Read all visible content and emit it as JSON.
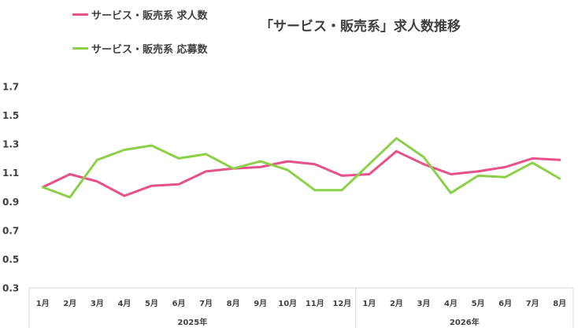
{
  "chart_data": {
    "type": "line",
    "title": "「サービス・販売系」求人数推移",
    "categories": [
      "1月",
      "2月",
      "3月",
      "4月",
      "5月",
      "6月",
      "7月",
      "8月",
      "9月",
      "10月",
      "11月",
      "12月",
      "1月",
      "2月",
      "3月",
      "4月",
      "5月",
      "6月",
      "7月",
      "8月"
    ],
    "groups": [
      {
        "label": "2025年",
        "count": 12
      },
      {
        "label": "2026年",
        "count": 8
      }
    ],
    "yticks": [
      "0.3",
      "0.5",
      "0.7",
      "0.9",
      "1.1",
      "1.3",
      "1.5",
      "1.7"
    ],
    "ylim": [
      0.3,
      1.7
    ],
    "legend_position": "top-left",
    "grid": false,
    "series": [
      {
        "name": "サービス・販売系 求人数",
        "color": "#e8508a",
        "values": [
          1.0,
          1.09,
          1.04,
          0.94,
          1.01,
          1.02,
          1.11,
          1.13,
          1.14,
          1.18,
          1.16,
          1.08,
          1.09,
          1.25,
          1.16,
          1.09,
          1.11,
          1.14,
          1.2,
          1.19
        ]
      },
      {
        "name": "サービス・販売系 応募数",
        "color": "#8cd04a",
        "values": [
          1.0,
          0.93,
          1.19,
          1.26,
          1.29,
          1.2,
          1.23,
          1.13,
          1.18,
          1.12,
          0.98,
          0.98,
          1.16,
          1.34,
          1.21,
          0.96,
          1.08,
          1.07,
          1.17,
          1.06
        ]
      }
    ]
  }
}
